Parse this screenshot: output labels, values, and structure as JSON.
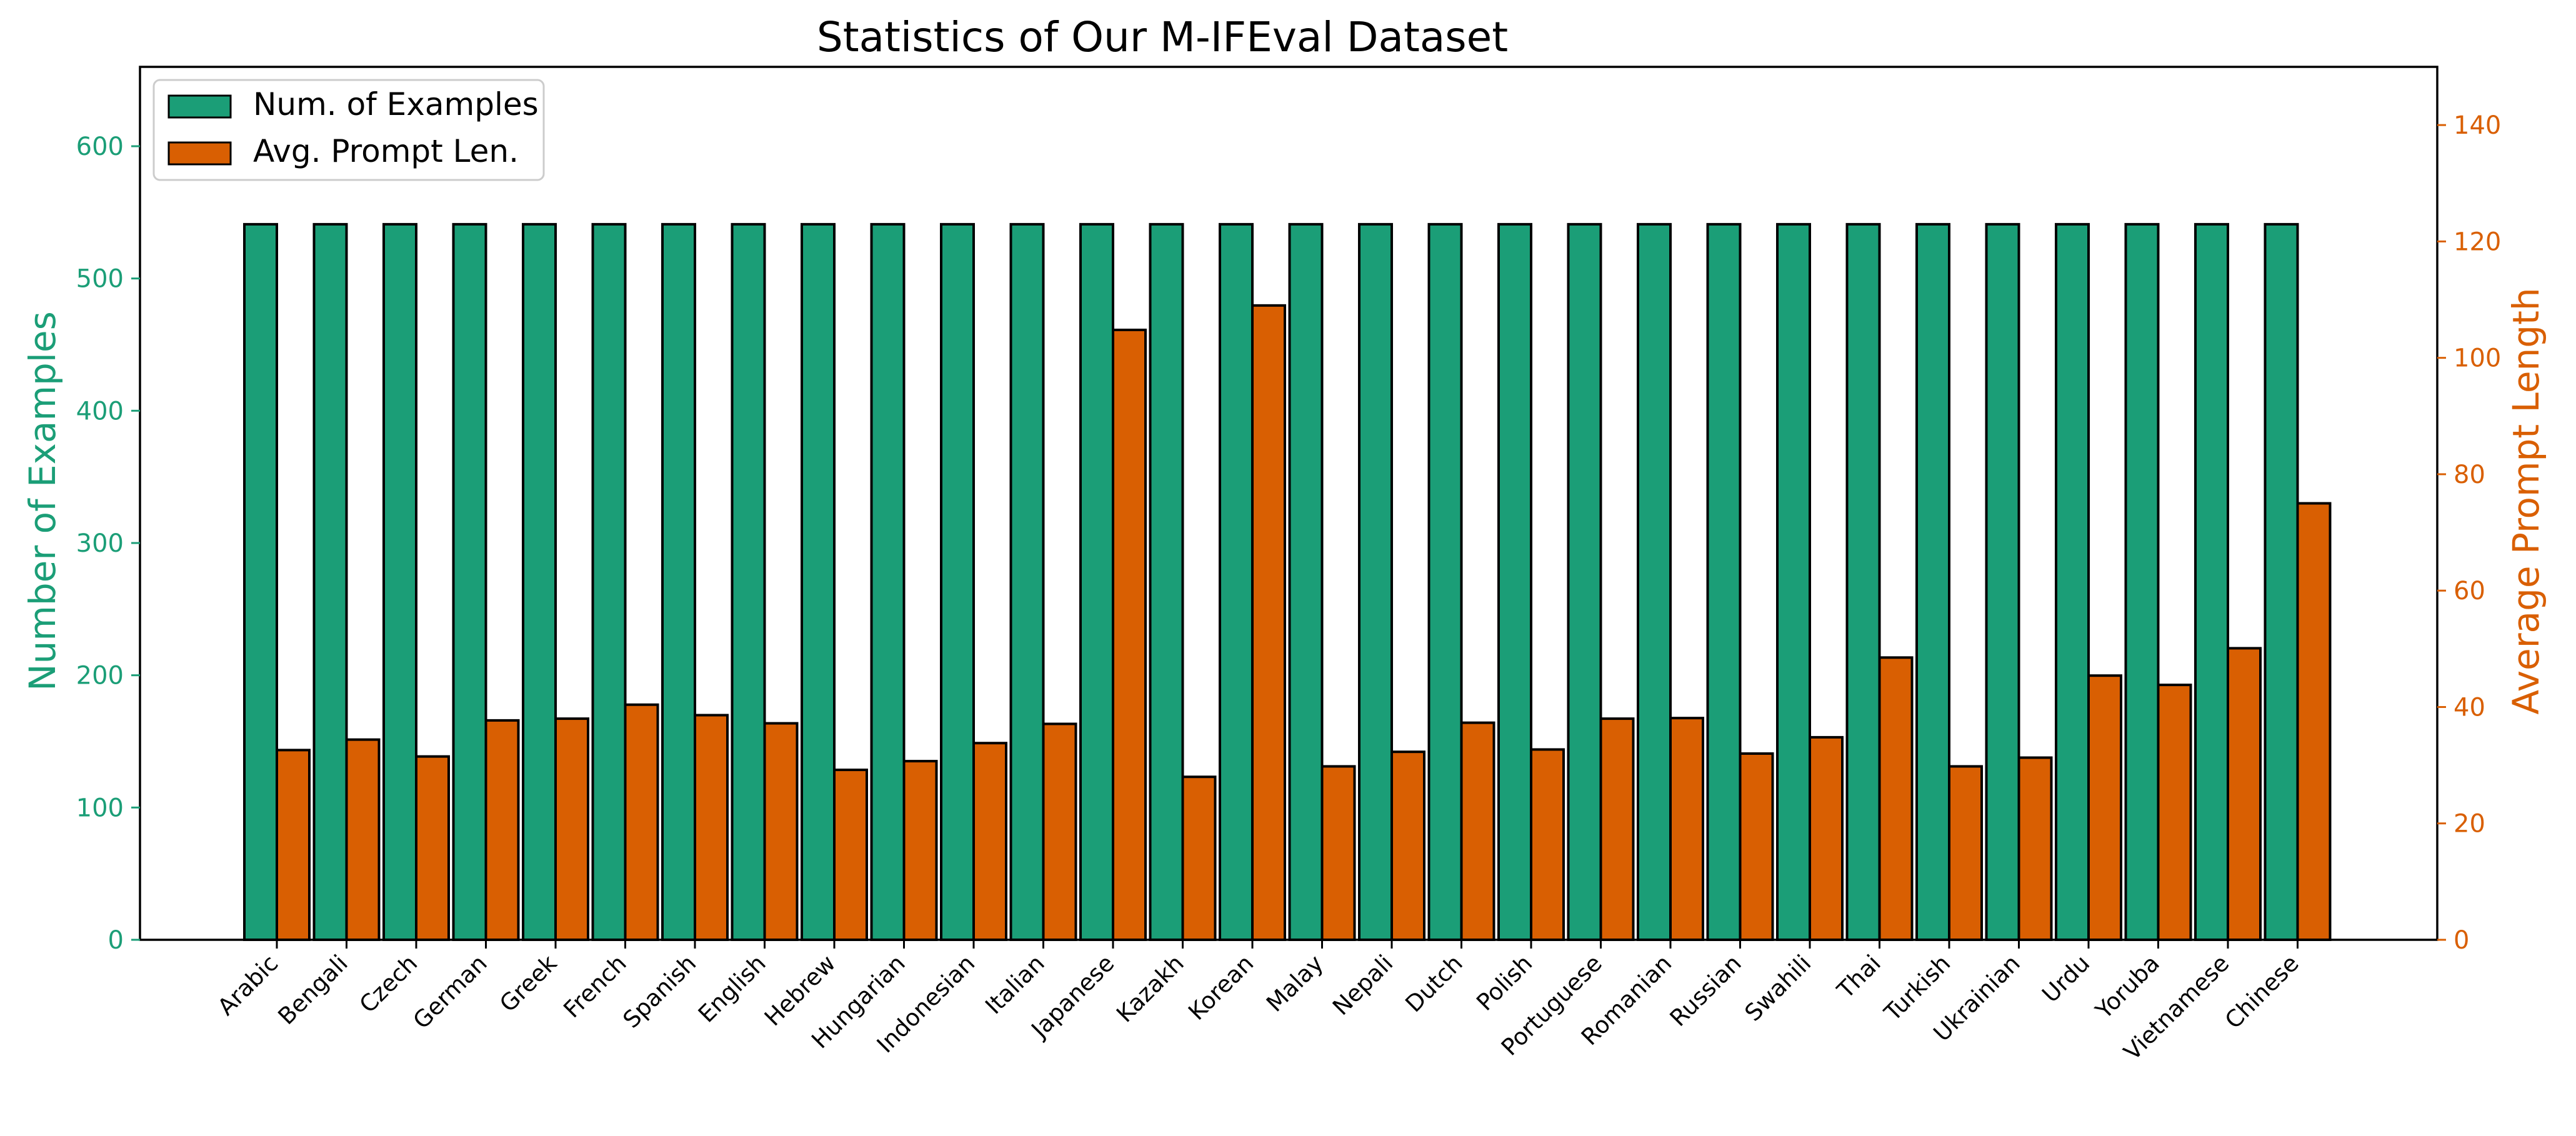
{
  "chart_data": {
    "type": "bar",
    "title": "Statistics of Our M-IFEval Dataset",
    "categories": [
      "Arabic",
      "Bengali",
      "Czech",
      "German",
      "Greek",
      "French",
      "Spanish",
      "English",
      "Hebrew",
      "Hungarian",
      "Indonesian",
      "Italian",
      "Japanese",
      "Kazakh",
      "Korean",
      "Malay",
      "Nepali",
      "Dutch",
      "Polish",
      "Portuguese",
      "Romanian",
      "Russian",
      "Swahili",
      "Thai",
      "Turkish",
      "Ukrainian",
      "Urdu",
      "Yoruba",
      "Vietnamese",
      "Chinese"
    ],
    "series": [
      {
        "name": "Num. of Examples",
        "axis": "left",
        "color": "#1b9e77",
        "values": [
          541,
          541,
          541,
          541,
          541,
          541,
          541,
          541,
          541,
          541,
          541,
          541,
          541,
          541,
          541,
          541,
          541,
          541,
          541,
          541,
          541,
          541,
          541,
          541,
          541,
          541,
          541,
          541,
          541,
          541
        ]
      },
      {
        "name": "Avg. Prompt Len.",
        "axis": "right",
        "color": "#d95f02",
        "values": [
          32.6,
          34.4,
          31.5,
          37.7,
          38.0,
          40.4,
          38.6,
          37.2,
          29.2,
          30.7,
          33.8,
          37.1,
          104.8,
          28.0,
          109.0,
          29.8,
          32.3,
          37.3,
          32.7,
          38.0,
          38.1,
          32.0,
          34.8,
          48.5,
          29.8,
          31.3,
          45.4,
          43.8,
          50.1,
          75.0
        ]
      }
    ],
    "y_left": {
      "label": "Number of Examples",
      "range": [
        0,
        660
      ],
      "ticks": [
        0,
        100,
        200,
        300,
        400,
        500,
        600
      ],
      "color": "#1b9e77"
    },
    "y_right": {
      "label": "Average Prompt Length",
      "range": [
        0,
        150
      ],
      "ticks": [
        0,
        20,
        40,
        60,
        80,
        100,
        120,
        140
      ],
      "color": "#d95f02"
    },
    "xlabel": "",
    "legend": {
      "placement": "top-left"
    },
    "grid": false
  }
}
